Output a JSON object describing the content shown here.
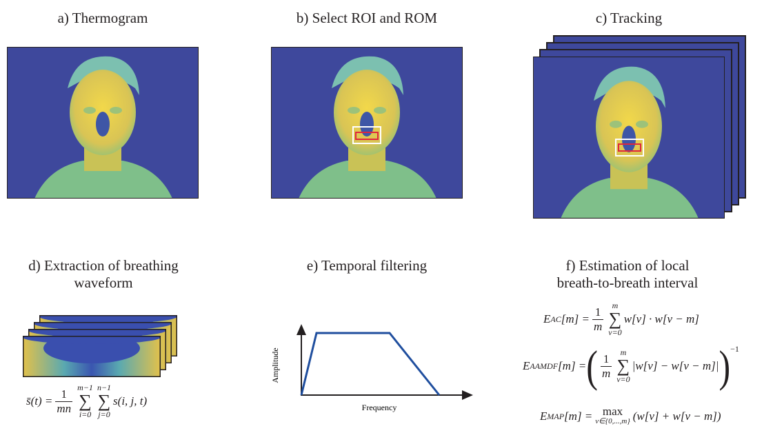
{
  "panels": [
    {
      "title": "a) Thermogram"
    },
    {
      "title": "b) Select ROI and ROM"
    },
    {
      "title": "c) Tracking"
    },
    {
      "title": "d) Extraction of breathing waveform"
    },
    {
      "title": "e) Temporal filtering"
    },
    {
      "title": "f) Estimation of local breath-to-breath interval"
    }
  ],
  "filter_plot": {
    "y_label": "Amplitude",
    "x_label": "Frequency"
  },
  "formulas": {
    "d": {
      "lhs": "s̄(t) =",
      "num": "1",
      "den": "mn",
      "sum1": {
        "sym": "∑",
        "top": "m−1",
        "bottom": "i=0"
      },
      "sum2": {
        "sym": "∑",
        "top": "n−1",
        "bottom": "j=0"
      },
      "body": "s(i, j, t)"
    },
    "f1": {
      "sym": "E",
      "sub": "AC",
      "rest": "[m] =",
      "num": "1",
      "den": "m",
      "sum": {
        "sym": "∑",
        "top": "m",
        "bottom": "v=0"
      },
      "body": "w[v] · w[v − m]"
    },
    "f2": {
      "sym": "E",
      "sub": "AAMDF",
      "rest": "[m] =",
      "open": "(",
      "num": "1",
      "den": "m",
      "sum": {
        "sym": "∑",
        "top": "m",
        "bottom": "v=0"
      },
      "body": "|w[v] − w[v − m]|",
      "close": ")",
      "exp": "−1"
    },
    "f3": {
      "sym": "E",
      "sub": "MAP",
      "rest": "[m] =",
      "op": "max",
      "under": "v∈{0,...,m}",
      "body": "(w[v] + w[v − m])"
    }
  }
}
